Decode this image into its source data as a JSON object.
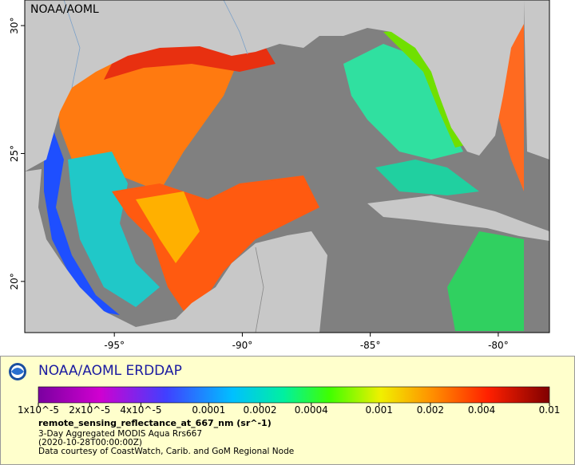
{
  "map": {
    "watermark": "NOAA/AOML",
    "xlim": [
      -98.5,
      -78
    ],
    "ylim": [
      18,
      31
    ],
    "xticks": [
      {
        "value": -95,
        "label": "-95°"
      },
      {
        "value": -90,
        "label": "-90°"
      },
      {
        "value": -85,
        "label": "-85°"
      },
      {
        "value": -80,
        "label": "-80°"
      }
    ],
    "yticks": [
      {
        "value": 20,
        "label": "20°"
      },
      {
        "value": 25,
        "label": "25°"
      },
      {
        "value": 30,
        "label": "30°"
      }
    ]
  },
  "legend": {
    "title": "NOAA/AOML ERDDAP",
    "colorbar": {
      "log_scale": true,
      "lim": [
        1e-05,
        0.01
      ],
      "ticks": [
        {
          "value": 1e-05,
          "label": "1x10^-5"
        },
        {
          "value": 2e-05,
          "label": "2x10^-5"
        },
        {
          "value": 4e-05,
          "label": "4x10^-5"
        },
        0.0001,
        0.0002,
        0.0004,
        0.001,
        0.002,
        0.004,
        0.01
      ]
    },
    "variable": "remote_sensing_reflectance_at_667_nm (sr^-1)",
    "lines": [
      "3-Day Aggregated MODIS Aqua Rrs667",
      "(2020-10-28T00:00:00Z)",
      "Data courtesy of CoastWatch, Carib. and GoM Regional Node"
    ]
  }
}
